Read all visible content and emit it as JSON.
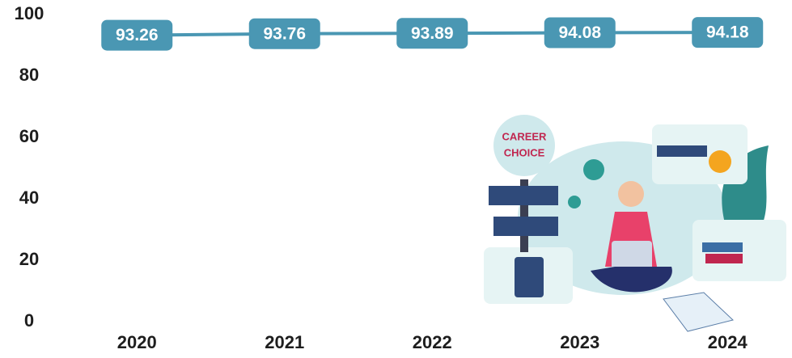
{
  "chart_data": {
    "type": "line",
    "categories": [
      "2020",
      "2021",
      "2022",
      "2023",
      "2024"
    ],
    "values": [
      93.26,
      93.76,
      93.89,
      94.08,
      94.18
    ],
    "color": "#4a97b3",
    "ylim": [
      0,
      100
    ],
    "yticks": [
      0,
      20,
      40,
      60,
      80,
      100
    ],
    "grid": false,
    "annotations": [
      "CAREER",
      "CHOICE"
    ]
  }
}
